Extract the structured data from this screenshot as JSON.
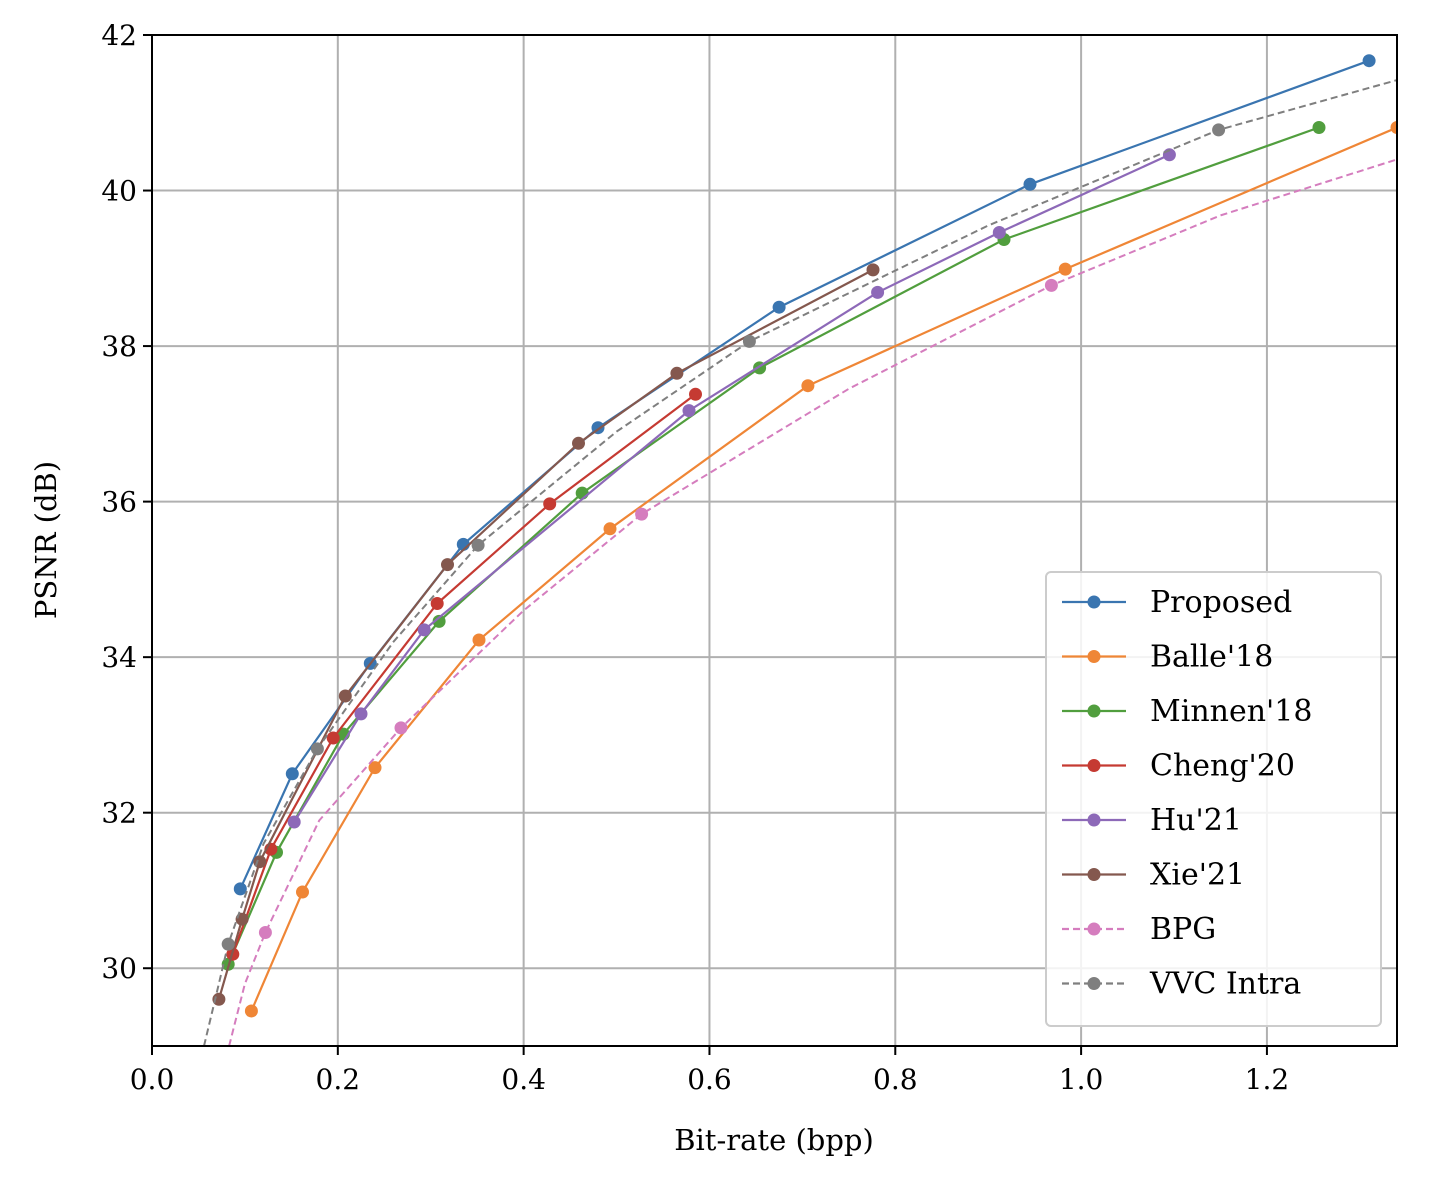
{
  "chart_data": {
    "type": "line",
    "title": "",
    "xlabel": "Bit-rate (bpp)",
    "ylabel": "PSNR (dB)",
    "xlim": [
      0.0,
      1.34
    ],
    "ylim": [
      29.0,
      42.0
    ],
    "xticks": [
      "0.0",
      "0.2",
      "0.4",
      "0.6",
      "0.8",
      "1.0",
      "1.2"
    ],
    "yticks": [
      "30",
      "32",
      "34",
      "36",
      "38",
      "40",
      "42"
    ],
    "grid": true,
    "legend_position": "lower-right",
    "series": [
      {
        "name": "Proposed",
        "color": "#3a75b0",
        "dashed": false,
        "x": [
          0.095,
          0.151,
          0.235,
          0.335,
          0.48,
          0.675,
          0.945,
          1.31
        ],
        "y": [
          31.02,
          32.5,
          33.92,
          35.45,
          36.95,
          38.5,
          40.08,
          41.67
        ]
      },
      {
        "name": "Balle'18",
        "color": "#ef8636",
        "dashed": false,
        "x": [
          0.107,
          0.162,
          0.24,
          0.352,
          0.493,
          0.706,
          0.983,
          1.34
        ],
        "y": [
          29.45,
          30.98,
          32.58,
          34.22,
          35.65,
          37.49,
          38.99,
          40.81
        ]
      },
      {
        "name": "Minnen'18",
        "color": "#519e3e",
        "dashed": false,
        "x": [
          0.082,
          0.134,
          0.206,
          0.309,
          0.463,
          0.654,
          0.917,
          1.256
        ],
        "y": [
          30.05,
          31.49,
          33.01,
          34.46,
          36.11,
          37.72,
          39.37,
          40.81
        ]
      },
      {
        "name": "Cheng'20",
        "color": "#c53a32",
        "dashed": false,
        "x": [
          0.087,
          0.128,
          0.195,
          0.307,
          0.428,
          0.585
        ],
        "y": [
          30.18,
          31.53,
          32.96,
          34.69,
          35.97,
          37.38
        ]
      },
      {
        "name": "Hu'21",
        "color": "#8d69b8",
        "dashed": false,
        "x": [
          0.153,
          0.225,
          0.293,
          0.578,
          0.781,
          0.912,
          1.095
        ],
        "y": [
          31.88,
          33.27,
          34.35,
          37.17,
          38.69,
          39.46,
          40.46
        ]
      },
      {
        "name": "Xie'21",
        "color": "#84584e",
        "dashed": false,
        "x": [
          0.072,
          0.097,
          0.116,
          0.208,
          0.318,
          0.459,
          0.565,
          0.776
        ],
        "y": [
          29.6,
          30.63,
          31.37,
          33.5,
          35.19,
          36.75,
          37.65,
          38.98
        ]
      },
      {
        "name": "BPG",
        "color": "#d57dbe",
        "dashed": true,
        "x": [
          0.122,
          0.268,
          0.527,
          0.968
        ],
        "y": [
          30.46,
          33.09,
          35.84,
          38.78
        ],
        "line_x": [
          0.083,
          0.1,
          0.122,
          0.18,
          0.268,
          0.4,
          0.527,
          0.75,
          0.968,
          1.15,
          1.34
        ],
        "line_y": [
          29.0,
          29.8,
          30.46,
          31.9,
          33.09,
          34.6,
          35.84,
          37.45,
          38.78,
          39.68,
          40.4
        ]
      },
      {
        "name": "VVC Intra",
        "color": "#7f7f7f",
        "dashed": true,
        "x": [
          0.082,
          0.178,
          0.351,
          0.643,
          1.148
        ],
        "y": [
          30.31,
          32.82,
          35.44,
          38.06,
          40.78
        ],
        "line_x": [
          0.056,
          0.07,
          0.082,
          0.12,
          0.178,
          0.26,
          0.351,
          0.5,
          0.643,
          0.9,
          1.148,
          1.34
        ],
        "line_y": [
          29.0,
          29.7,
          30.31,
          31.6,
          32.82,
          34.2,
          35.44,
          36.9,
          38.06,
          39.55,
          40.78,
          41.42
        ]
      }
    ]
  }
}
